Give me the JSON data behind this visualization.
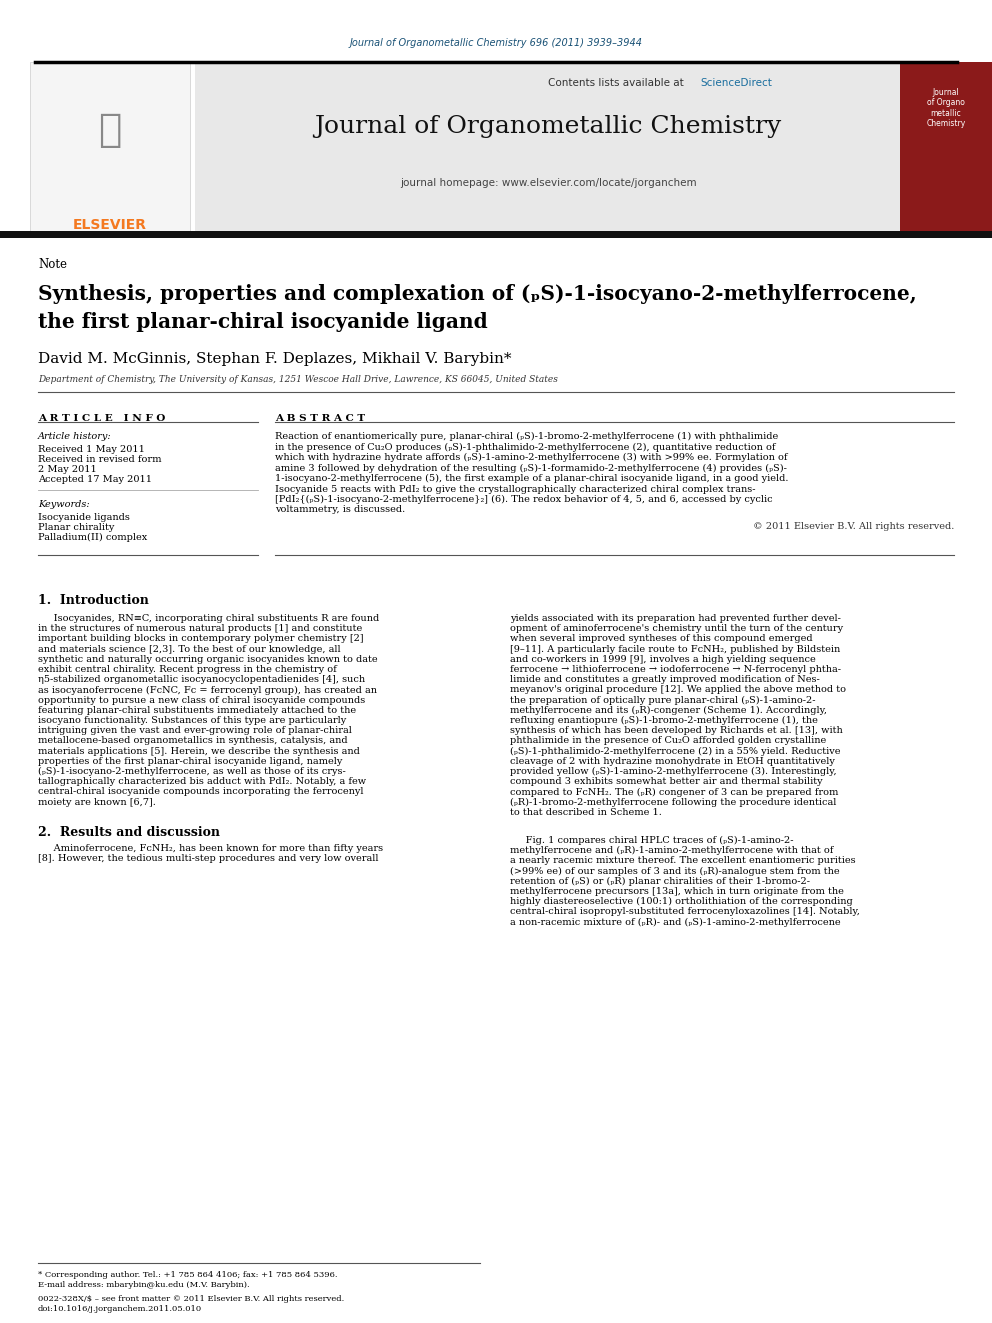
{
  "page_bg": "#ffffff",
  "header_link_color": "#1a5276",
  "journal_title": "Journal of Organometallic Chemistry",
  "journal_ref": "Journal of Organometallic Chemistry 696 (2011) 3939–3944",
  "contents_text": "Contents lists available at ScienceDirect",
  "sciencedirect_color": "#1a6e9e",
  "homepage_text": "journal homepage: www.elsevier.com/locate/jorganchem",
  "elsevier_orange": "#f47920",
  "header_bg": "#e8e8e8",
  "dark_red_cover": "#8b1a1a",
  "note_label": "Note",
  "article_title_line1": "Synthesis, properties and complexation of (ₚS)-1-isocyano-2-methylferrocene,",
  "article_title_line2": "the first planar-chiral isocyanide ligand",
  "authors": "David M. McGinnis, Stephan F. Deplazes, Mikhail V. Barybin*",
  "affiliation": "Department of Chemistry, The University of Kansas, 1251 Wescoe Hall Drive, Lawrence, KS 66045, United States",
  "article_info_header": "A R T I C L E   I N F O",
  "abstract_header": "A B S T R A C T",
  "article_history_label": "Article history:",
  "received1": "Received 1 May 2011",
  "received2": "Received in revised form",
  "received2b": "2 May 2011",
  "accepted": "Accepted 17 May 2011",
  "keywords_label": "Keywords:",
  "keyword1": "Isocyanide ligands",
  "keyword2": "Planar chirality",
  "keyword3": "Palladium(II) complex",
  "copyright": "© 2011 Elsevier B.V. All rights reserved.",
  "intro_header": "1.  Introduction",
  "results_header": "2.  Results and discussion",
  "footnote1": "* Corresponding author. Tel.: +1 785 864 4106; fax: +1 785 864 5396.",
  "footnote2": "E-mail address: mbarybin@ku.edu (M.V. Barybin).",
  "footnote3": "0022-328X/$ – see front matter © 2011 Elsevier B.V. All rights reserved.",
  "footnote4": "doi:10.1016/j.jorganchem.2011.05.010"
}
